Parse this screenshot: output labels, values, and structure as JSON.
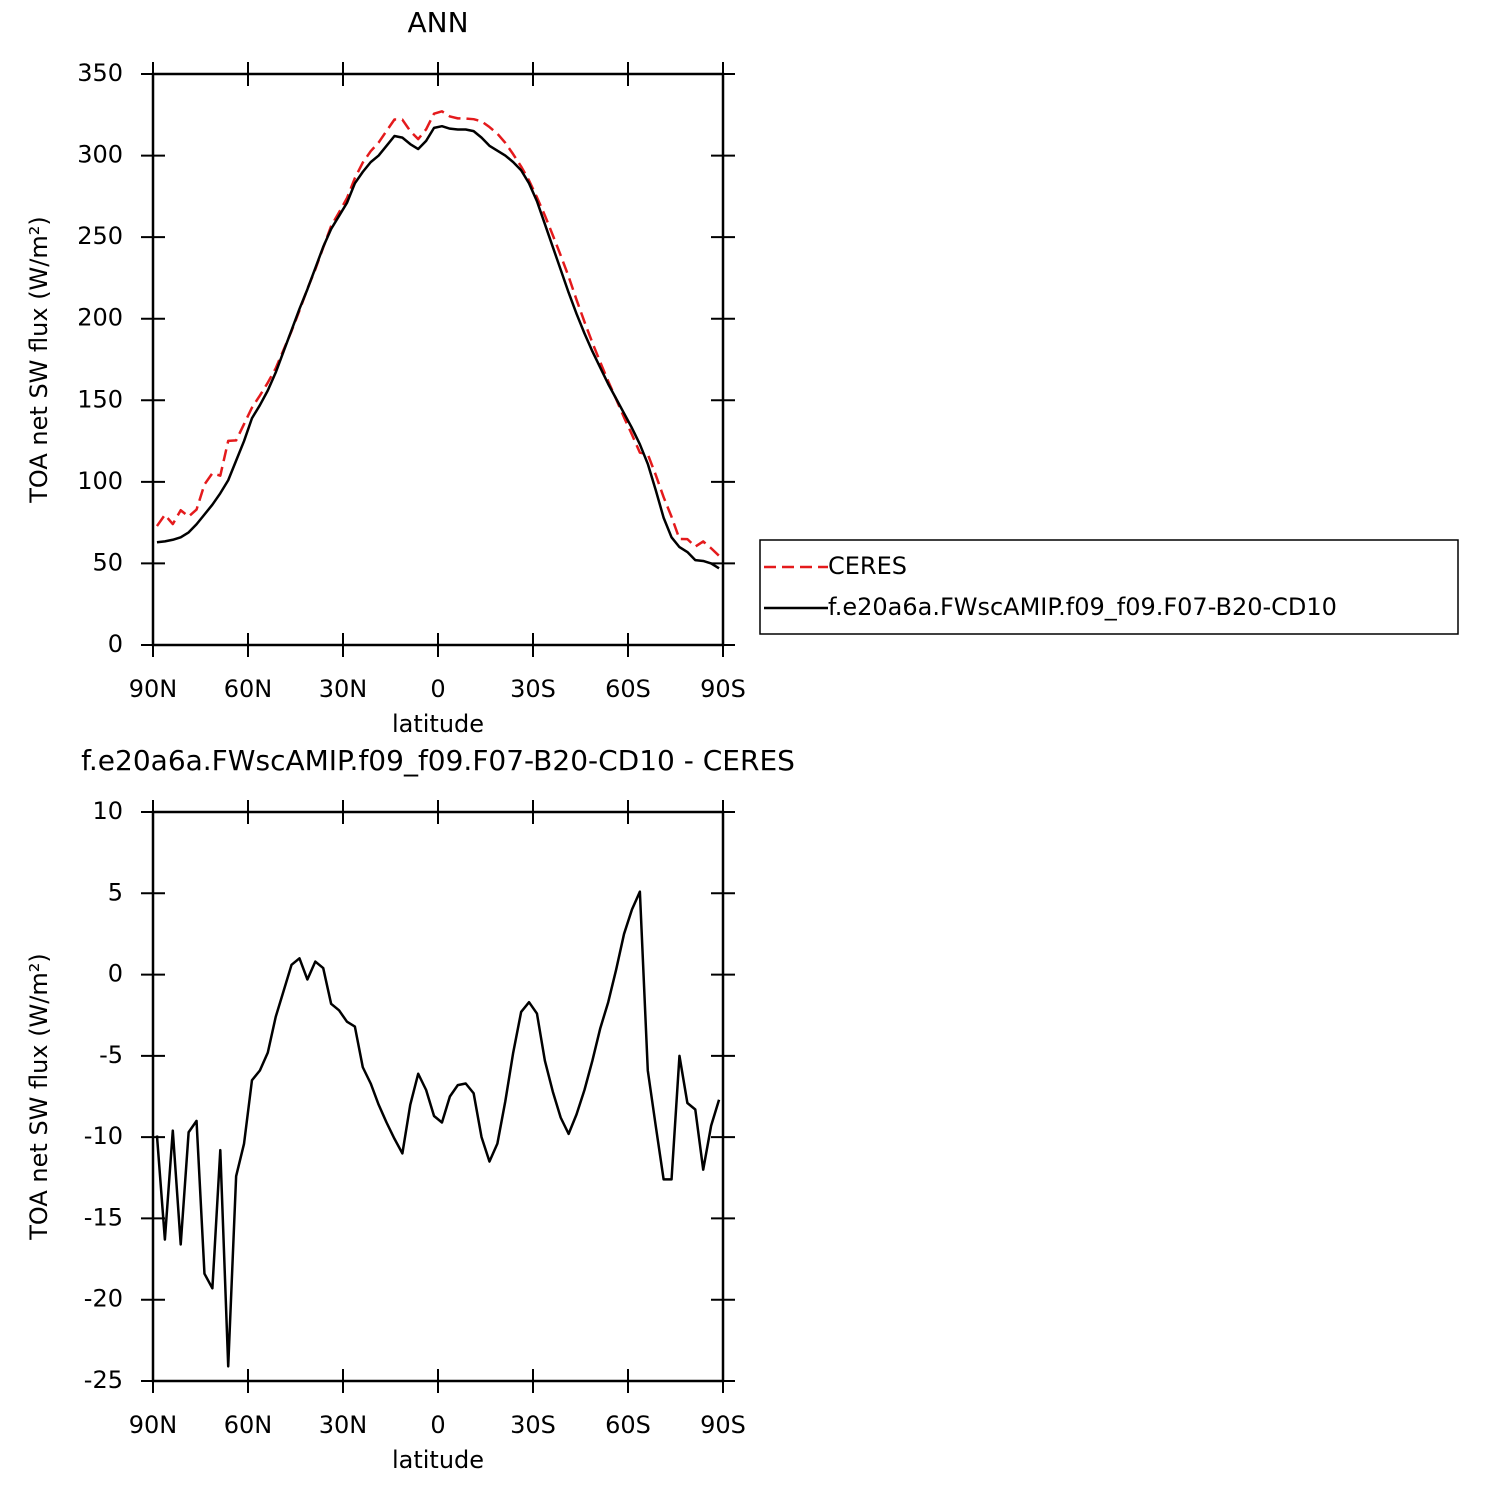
{
  "chart_data": [
    {
      "type": "line",
      "title": "ANN",
      "xlabel": "latitude",
      "ylabel": "TOA net SW flux (W/m²)",
      "x": [
        88.75,
        86.25,
        83.75,
        81.25,
        78.75,
        76.25,
        73.75,
        71.25,
        68.75,
        66.25,
        63.75,
        61.25,
        58.75,
        56.25,
        53.75,
        51.25,
        48.75,
        46.25,
        43.75,
        41.25,
        38.75,
        36.25,
        33.75,
        31.25,
        28.75,
        26.25,
        23.75,
        21.25,
        18.75,
        16.25,
        13.75,
        11.25,
        8.75,
        6.25,
        3.75,
        1.25,
        -1.25,
        -3.75,
        -6.25,
        -8.75,
        -11.25,
        -13.75,
        -16.25,
        -18.75,
        -21.25,
        -23.75,
        -26.25,
        -28.75,
        -31.25,
        -33.75,
        -36.25,
        -38.75,
        -41.25,
        -43.75,
        -46.25,
        -48.75,
        -51.25,
        -53.75,
        -56.25,
        -58.75,
        -61.25,
        -63.75,
        -66.25,
        -68.75,
        -71.25,
        -73.75,
        -76.25,
        -78.75,
        -81.25,
        -83.75,
        -86.25,
        -88.75
      ],
      "series": [
        {
          "name": "CERES",
          "color": "#e41a1c",
          "dashed": true,
          "values": [
            72.9,
            79.8,
            74.1,
            82.6,
            78.7,
            83,
            98.4,
            105.3,
            103.8,
            125.1,
            125.4,
            135.4,
            145.5,
            152.9,
            160.8,
            169.6,
            181,
            192.4,
            205,
            218.3,
            230.2,
            243.6,
            256.8,
            265.2,
            273.9,
            286.2,
            295.7,
            302.7,
            308,
            315.1,
            322.1,
            322,
            315,
            310.1,
            316.1,
            325.7,
            327.1,
            324,
            322.8,
            322.7,
            322.3,
            321,
            317.5,
            313.4,
            307.8,
            300.8,
            293.3,
            284.7,
            274.4,
            263.3,
            251.2,
            238.8,
            225.8,
            211.6,
            198.1,
            185.3,
            173.3,
            161.7,
            150.7,
            139.5,
            129,
            117.9,
            116.9,
            104.3,
            90.6,
            78.6,
            65,
            64.9,
            60.3,
            63.5,
            59.3,
            54.7
          ]
        },
        {
          "name": "f.e20a6a.FWscAMIP.f09_f09.F07-B20-CD10",
          "color": "#000000",
          "dashed": false,
          "values": [
            63,
            63.5,
            64.5,
            66,
            69,
            74,
            80,
            86,
            93,
            101,
            113,
            125,
            139,
            147,
            156,
            167,
            180,
            193,
            206,
            218,
            231,
            244,
            255,
            263,
            271,
            283,
            290,
            296,
            300,
            306,
            312,
            311,
            307,
            304,
            309,
            317,
            318,
            316.5,
            316,
            316,
            315,
            311,
            306,
            303,
            300,
            296,
            291,
            283,
            272,
            258,
            244,
            230,
            216,
            203,
            191,
            180,
            170,
            160,
            151,
            142,
            133,
            123,
            111,
            95,
            78,
            66,
            60,
            57,
            52,
            51.5,
            50,
            47
          ]
        }
      ],
      "xlim": [
        90,
        -90
      ],
      "xticks": [
        {
          "value": 90,
          "label": "90N"
        },
        {
          "value": 60,
          "label": "60N"
        },
        {
          "value": 30,
          "label": "30N"
        },
        0,
        {
          "value": -30,
          "label": "30S"
        },
        {
          "value": -60,
          "label": "60S"
        },
        {
          "value": -90,
          "label": "90S"
        }
      ],
      "ylim": [
        0,
        350
      ],
      "yticks": [
        0,
        50,
        100,
        150,
        200,
        250,
        300,
        350
      ],
      "legend": "right"
    },
    {
      "type": "line",
      "title": "f.e20a6a.FWscAMIP.f09_f09.F07-B20-CD10 - CERES",
      "xlabel": "latitude",
      "ylabel": "TOA net SW flux (W/m²)",
      "x": [
        88.75,
        86.25,
        83.75,
        81.25,
        78.75,
        76.25,
        73.75,
        71.25,
        68.75,
        66.25,
        63.75,
        61.25,
        58.75,
        56.25,
        53.75,
        51.25,
        48.75,
        46.25,
        43.75,
        41.25,
        38.75,
        36.25,
        33.75,
        31.25,
        28.75,
        26.25,
        23.75,
        21.25,
        18.75,
        16.25,
        13.75,
        11.25,
        8.75,
        6.25,
        3.75,
        1.25,
        -1.25,
        -3.75,
        -6.25,
        -8.75,
        -11.25,
        -13.75,
        -16.25,
        -18.75,
        -21.25,
        -23.75,
        -26.25,
        -28.75,
        -31.25,
        -33.75,
        -36.25,
        -38.75,
        -41.25,
        -43.75,
        -46.25,
        -48.75,
        -51.25,
        -53.75,
        -56.25,
        -58.75,
        -61.25,
        -63.75,
        -66.25,
        -68.75,
        -71.25,
        -73.75,
        -76.25,
        -78.75,
        -81.25,
        -83.75,
        -86.25,
        -88.75
      ],
      "series": [
        {
          "color": "#000000",
          "dashed": false,
          "values": [
            -9.9,
            -16.3,
            -9.6,
            -16.6,
            -9.7,
            -9.0,
            -18.4,
            -19.3,
            -10.8,
            -24.1,
            -12.4,
            -10.4,
            -6.5,
            -5.9,
            -4.8,
            -2.6,
            -1.0,
            0.6,
            1.0,
            -0.3,
            0.8,
            0.4,
            -1.8,
            -2.2,
            -2.9,
            -3.2,
            -5.7,
            -6.7,
            -8.0,
            -9.1,
            -10.1,
            -11.0,
            -8.0,
            -6.1,
            -7.1,
            -8.7,
            -9.1,
            -7.5,
            -6.8,
            -6.7,
            -7.3,
            -10.0,
            -11.5,
            -10.4,
            -7.8,
            -4.8,
            -2.3,
            -1.7,
            -2.4,
            -5.3,
            -7.2,
            -8.8,
            -9.8,
            -8.6,
            -7.1,
            -5.3,
            -3.3,
            -1.7,
            0.3,
            2.5,
            4.0,
            5.1,
            -5.9,
            -9.3,
            -12.6,
            -12.6,
            -5.0,
            -7.9,
            -8.3,
            -12.0,
            -9.3,
            -7.7
          ]
        }
      ],
      "xlim": [
        90,
        -90
      ],
      "xticks": [
        {
          "value": 90,
          "label": "90N"
        },
        {
          "value": 60,
          "label": "60N"
        },
        {
          "value": 30,
          "label": "30N"
        },
        0,
        {
          "value": -30,
          "label": "30S"
        },
        {
          "value": -60,
          "label": "60S"
        },
        {
          "value": -90,
          "label": "90S"
        }
      ],
      "ylim": [
        -25,
        10
      ],
      "yticks": [
        -25,
        -20,
        -15,
        -10,
        -5,
        0,
        5,
        10
      ]
    }
  ]
}
